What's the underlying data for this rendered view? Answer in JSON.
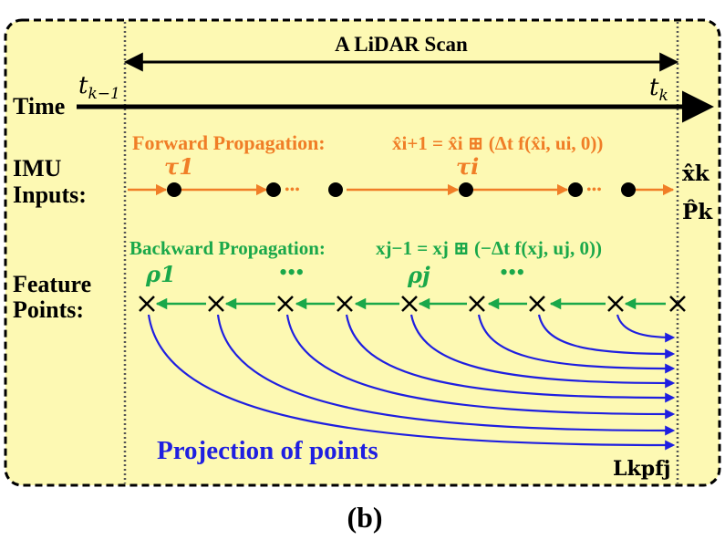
{
  "caption": "(b)",
  "scan": {
    "label": "A LiDAR Scan",
    "start_var": "t",
    "start_sub": "k−1",
    "end_var": "t",
    "end_sub": "k"
  },
  "time": {
    "label": "Time"
  },
  "imu": {
    "label_line1": "IMU",
    "label_line2": "Inputs:",
    "forward_label": "Forward Propagation:",
    "forward_equation": "x̂i+1 = x̂i ⊞ (Δt f(x̂i, ui, 0))",
    "tau1": "τ1",
    "taui": "τi",
    "state_label": "x̂k",
    "cov_label": "P̂k",
    "dots": "•••"
  },
  "features": {
    "label_line1": "Feature",
    "label_line2": "Points:",
    "backward_label": "Backward Propagation:",
    "backward_equation": "xj−1 = xj ⊞ (−Δt f(xj, uj, 0))",
    "rho1": "ρ1",
    "rhoj": "ρj",
    "dots": "•••"
  },
  "projection": {
    "label": "Projection of points",
    "point_label": "Lkpfj"
  },
  "colors": {
    "background": "#fdf9b3",
    "forward": "#f07e27",
    "backward": "#1aa84a",
    "projection": "#1f1fe0",
    "text": "#000000"
  }
}
